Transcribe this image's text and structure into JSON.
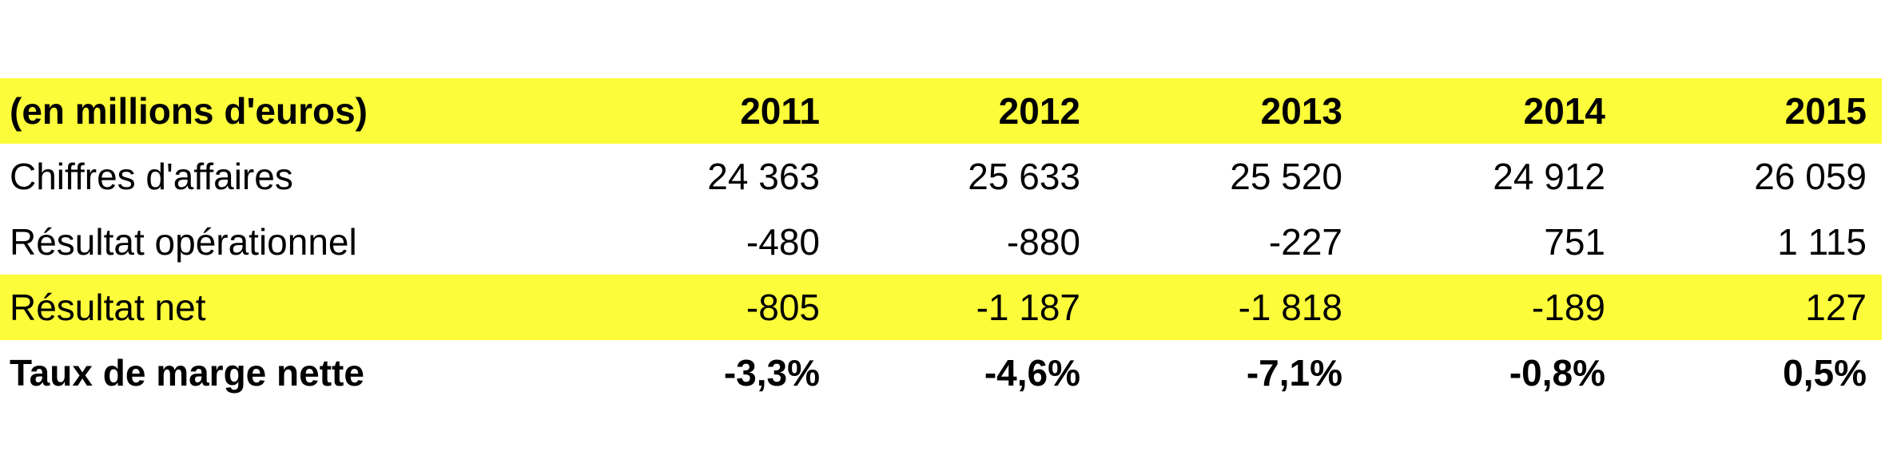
{
  "table": {
    "header": [
      "(en millions d'euros)",
      "2011",
      "2012",
      "2013",
      "2014",
      "2015"
    ],
    "rows": [
      [
        "Chiffres d'affaires",
        "24 363",
        "25 633",
        "25 520",
        "24 912",
        "26 059"
      ],
      [
        "Résultat opérationnel",
        "-480",
        "-880",
        "-227",
        "751",
        "1 115"
      ],
      [
        "Résultat net",
        "-805",
        "-1 187",
        "-1 818",
        "-189",
        "127"
      ],
      [
        "Taux de marge nette",
        "-3,3%",
        "-4,6%",
        "-7,1%",
        "-0,8%",
        "0,5%"
      ]
    ]
  }
}
